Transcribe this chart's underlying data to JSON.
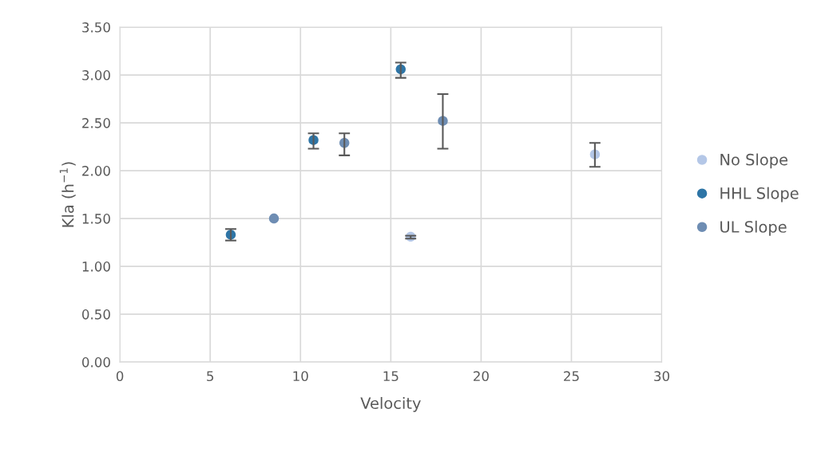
{
  "chart_data": {
    "type": "scatter",
    "xlabel": "Velocity",
    "ylabel": "Kla (h$^{−1}$)",
    "xlim": [
      0,
      30
    ],
    "xticks": [
      0,
      5,
      10,
      15,
      20,
      25,
      30
    ],
    "ylim": [
      0,
      3.5
    ],
    "yticks": [
      {
        "value": 0,
        "label": "0.00"
      },
      {
        "value": 0.5,
        "label": "0.50"
      },
      {
        "value": 1,
        "label": "1.00"
      },
      {
        "value": 1.5,
        "label": "1.50"
      },
      {
        "value": 2,
        "label": "2.00"
      },
      {
        "value": 2.5,
        "label": "2.50"
      },
      {
        "value": 3,
        "label": "3.00"
      },
      {
        "value": 3.5,
        "label": "3.50"
      }
    ],
    "grid": true,
    "legend": "right",
    "marker": "circle",
    "series": [
      {
        "name": "No Slope",
        "color": "#b4c7e7",
        "x": [
          16.1,
          26.3
        ],
        "values": [
          1.31,
          2.17
        ],
        "errors": [
          [
            1.29,
            1.32
          ],
          [
            2.04,
            2.29
          ]
        ]
      },
      {
        "name": "HHL Slope",
        "color": "#2e75a6",
        "x": [
          6.14,
          10.72,
          15.55
        ],
        "values": [
          1.33,
          2.32,
          3.06
        ],
        "errors": [
          [
            1.27,
            1.39
          ],
          [
            2.23,
            2.39
          ],
          [
            2.97,
            3.13
          ]
        ]
      },
      {
        "name": "UL Slope",
        "color": "#6e8db3",
        "x": [
          8.53,
          12.43,
          17.88
        ],
        "values": [
          1.5,
          2.29,
          2.52
        ],
        "errors": [
          null,
          [
            2.16,
            2.39
          ],
          [
            2.23,
            2.8
          ]
        ]
      }
    ]
  }
}
